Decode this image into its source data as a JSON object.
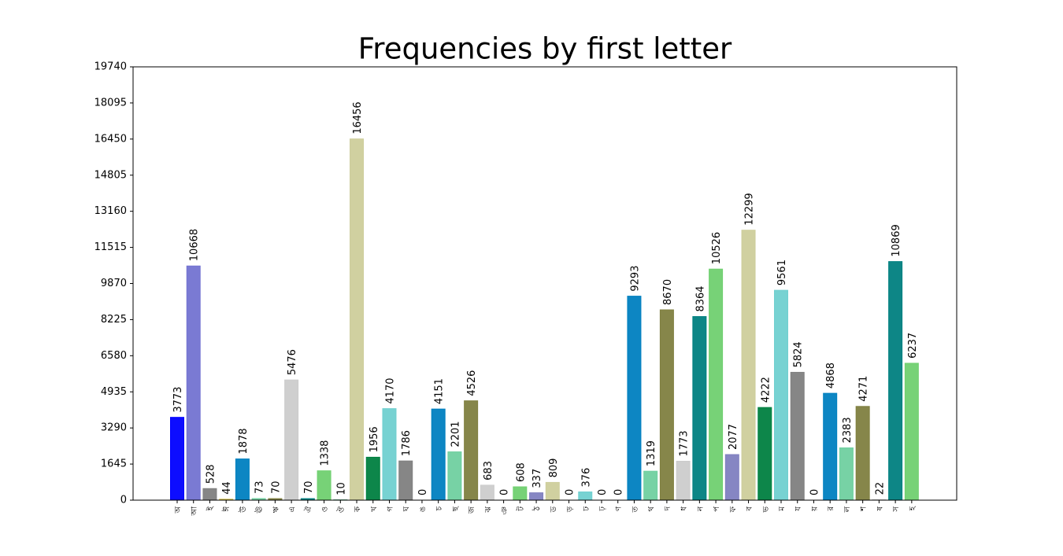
{
  "chart_data": {
    "type": "bar",
    "title": "Frequencies by first letter",
    "categories": [
      "অ",
      "আ",
      "ই",
      "ঈ",
      "উ",
      "ঊ",
      "ঋ",
      "এ",
      "ঐ",
      "ও",
      "ঔ",
      "ক",
      "খ",
      "গ",
      "ঘ",
      "ঙ",
      "চ",
      "ছ",
      "জ",
      "ঝ",
      "ঞ",
      "ট",
      "ঠ",
      "ড",
      "ড়",
      "ঢ",
      "ঢ়",
      "ণ",
      "ত",
      "থ",
      "দ",
      "ধ",
      "ন",
      "প",
      "ফ",
      "ব",
      "ভ",
      "ম",
      "য",
      "য়",
      "র",
      "ল",
      "শ",
      "ষ",
      "স",
      "হ"
    ],
    "values": [
      3773,
      10668,
      528,
      44,
      1878,
      73,
      70,
      5476,
      70,
      1338,
      10,
      16456,
      1956,
      4170,
      1786,
      0,
      4151,
      2201,
      4526,
      683,
      0,
      608,
      337,
      809,
      0,
      376,
      0,
      0,
      9293,
      1319,
      8670,
      1773,
      8364,
      10526,
      2077,
      12299,
      4222,
      9561,
      5824,
      0,
      4868,
      2383,
      4271,
      22,
      10869,
      6237
    ],
    "colors": [
      "#0000ff",
      "#7373d1",
      "#808080",
      "#d4c04a",
      "#0080c0",
      "#70d0a0",
      "#808040",
      "#cccccc",
      "#008080",
      "#70d070",
      "#008040",
      "#cdcd9b",
      "#008040",
      "#70d0d0",
      "#808080",
      "#808080",
      "#0080c0",
      "#70d0a0",
      "#808040",
      "#cccccc",
      "#cccccc",
      "#70d070",
      "#8080c0",
      "#cdcd9b",
      "#cdcd9b",
      "#70d0d0",
      "#70d0d0",
      "#808080",
      "#0080c0",
      "#70d0a0",
      "#808040",
      "#cccccc",
      "#008080",
      "#70d070",
      "#8080c0",
      "#cdcd9b",
      "#008040",
      "#70d0d0",
      "#808080",
      "#808080",
      "#0080c0",
      "#70d0a0",
      "#808040",
      "#cccccc",
      "#008080",
      "#70d070"
    ],
    "ylim": [
      0,
      19740
    ],
    "yticks": [
      0,
      1645,
      3290,
      4935,
      6580,
      8225,
      9870,
      11515,
      13160,
      14805,
      16450,
      18095,
      19740
    ]
  }
}
